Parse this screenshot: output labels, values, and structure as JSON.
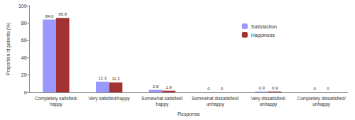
{
  "chart_data": {
    "type": "bar",
    "categories": [
      "Completely satisfied/happy",
      "Very satisfied/happy",
      "Somewhat satisfied/happy",
      "Somewhat dissatisfied/unhappy",
      "Very dissatisfied/unhappy",
      "Completely dissatisfied/unhappy"
    ],
    "series": [
      {
        "name": "Satisfaction",
        "color": "#9999ff",
        "values": [
          84.0,
          12.3,
          2.8,
          0,
          0.9,
          0
        ],
        "value_labels": [
          "84.0",
          "12.3",
          "2.8",
          "0",
          "0.9",
          "0"
        ]
      },
      {
        "name": "Happiness",
        "color": "#a33333",
        "values": [
          85.8,
          11.3,
          1.9,
          0,
          0.9,
          0
        ],
        "value_labels": [
          "85.8",
          "11.3",
          "1.9",
          "0",
          "0.9",
          "0"
        ]
      }
    ],
    "x_label": "Response",
    "y_label": "Proportion of patients (%)",
    "ylim": [
      0,
      100
    ],
    "yticks": [
      0,
      20,
      40,
      60,
      80,
      100
    ],
    "grid": false,
    "legend": "upper right",
    "data_labels": true
  }
}
